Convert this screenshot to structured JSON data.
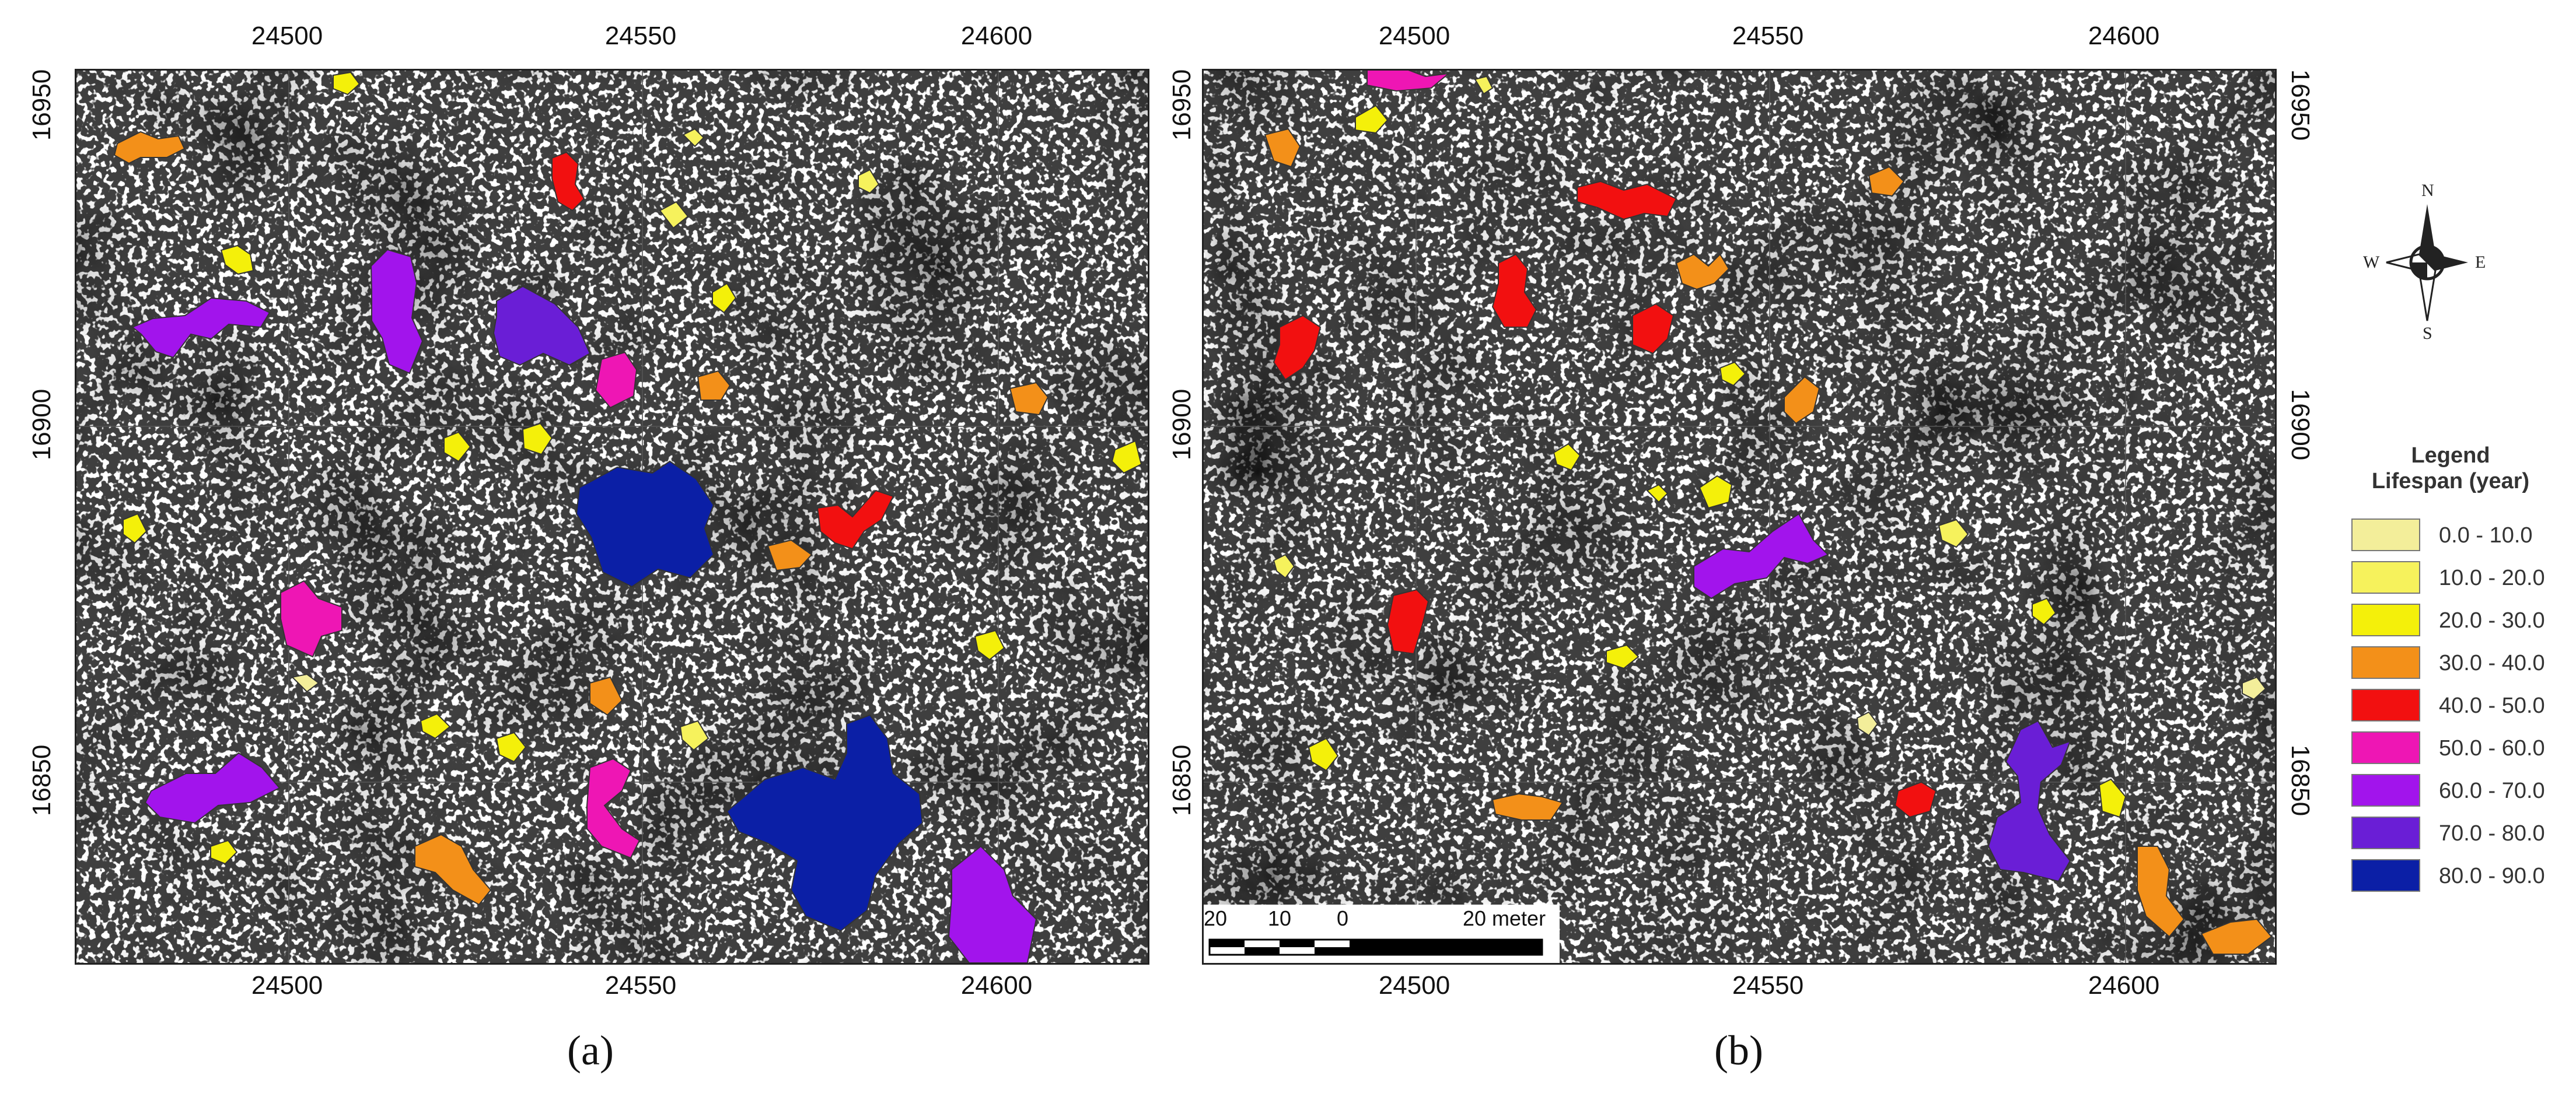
{
  "panels": [
    {
      "id": "a",
      "label": "(a)",
      "x_ticks": [
        "24500",
        "24550",
        "24600"
      ],
      "y_ticks": [
        "16950",
        "16900",
        "16850"
      ]
    },
    {
      "id": "b",
      "label": "(b)",
      "x_ticks": [
        "24500",
        "24550",
        "24600"
      ],
      "y_ticks": [
        "16950",
        "16900",
        "16850"
      ],
      "scale_bar": {
        "labels": [
          "20",
          "10",
          "0",
          "20 meter"
        ]
      }
    }
  ],
  "compass": {
    "n": "N",
    "s": "S",
    "e": "E",
    "w": "W"
  },
  "legend": {
    "title": "Legend",
    "subtitle": "Lifespan (year)",
    "items": [
      {
        "label": "0.0 - 10.0",
        "color": "#f3ee9a"
      },
      {
        "label": "10.0 - 20.0",
        "color": "#f6f25c"
      },
      {
        "label": "20.0 - 30.0",
        "color": "#f4f00a"
      },
      {
        "label": "30.0 - 40.0",
        "color": "#f39019"
      },
      {
        "label": "40.0 - 50.0",
        "color": "#f21010"
      },
      {
        "label": "50.0 - 60.0",
        "color": "#ee16b4"
      },
      {
        "label": "60.0 - 70.0",
        "color": "#a214ec"
      },
      {
        "label": "70.0 - 80.0",
        "color": "#6a1ed6"
      },
      {
        "label": "80.0 - 90.0",
        "color": "#0b1fa6"
      }
    ]
  }
}
